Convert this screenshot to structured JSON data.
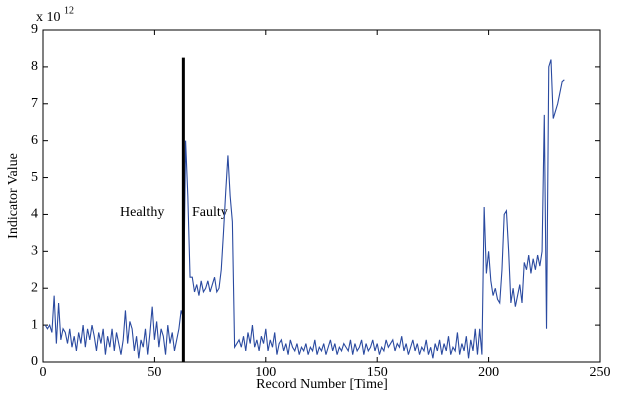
{
  "chart_data": {
    "type": "line",
    "xlabel": "Record Number [Time]",
    "ylabel": "Indicator Value",
    "exponent_base": "x 10",
    "exponent_power": "12",
    "annotations": [
      "Healthy",
      "Faulty"
    ],
    "xlim": [
      0,
      250
    ],
    "xticks": [
      0,
      50,
      100,
      150,
      200,
      250
    ],
    "ylim": [
      0,
      9
    ],
    "yticks": [
      0,
      1,
      2,
      3,
      4,
      5,
      6,
      7,
      8,
      9
    ],
    "divider_x": 63,
    "divider_top": 8.25,
    "divider_color": "#000000",
    "x": [
      1,
      2,
      3,
      4,
      5,
      6,
      7,
      8,
      9,
      10,
      11,
      12,
      13,
      14,
      15,
      16,
      17,
      18,
      19,
      20,
      21,
      22,
      23,
      24,
      25,
      26,
      27,
      28,
      29,
      30,
      31,
      32,
      33,
      34,
      35,
      36,
      37,
      38,
      39,
      40,
      41,
      42,
      43,
      44,
      45,
      46,
      47,
      48,
      49,
      50,
      51,
      52,
      53,
      54,
      55,
      56,
      57,
      58,
      59,
      60,
      61,
      62,
      63,
      64,
      65,
      66,
      67,
      68,
      69,
      70,
      71,
      72,
      73,
      74,
      75,
      76,
      77,
      78,
      79,
      80,
      81,
      82,
      83,
      84,
      85,
      86,
      87,
      88,
      89,
      90,
      91,
      92,
      93,
      94,
      95,
      96,
      97,
      98,
      99,
      100,
      101,
      102,
      103,
      104,
      105,
      106,
      107,
      108,
      109,
      110,
      111,
      112,
      113,
      114,
      115,
      116,
      117,
      118,
      119,
      120,
      121,
      122,
      123,
      124,
      125,
      126,
      127,
      128,
      129,
      130,
      131,
      132,
      133,
      134,
      135,
      136,
      137,
      138,
      139,
      140,
      141,
      142,
      143,
      144,
      145,
      146,
      147,
      148,
      149,
      150,
      151,
      152,
      153,
      154,
      155,
      156,
      157,
      158,
      159,
      160,
      161,
      162,
      163,
      164,
      165,
      166,
      167,
      168,
      169,
      170,
      171,
      172,
      173,
      174,
      175,
      176,
      177,
      178,
      179,
      180,
      181,
      182,
      183,
      184,
      185,
      186,
      187,
      188,
      189,
      190,
      191,
      192,
      193,
      194,
      195,
      196,
      197,
      198,
      199,
      200,
      201,
      202,
      203,
      204,
      205,
      206,
      207,
      208,
      209,
      210,
      211,
      212,
      213,
      214,
      215,
      216,
      217,
      218,
      219,
      220,
      221,
      222,
      223,
      224,
      225,
      226,
      227,
      228,
      229,
      230,
      231,
      232,
      233,
      234
    ],
    "series": [
      {
        "color": "#2a4aa0",
        "values": [
          1.0,
          0.9,
          1.0,
          0.8,
          1.8,
          0.5,
          1.6,
          0.6,
          0.9,
          0.8,
          0.5,
          0.9,
          0.4,
          0.7,
          0.3,
          0.8,
          0.5,
          1.0,
          0.4,
          0.9,
          0.6,
          1.0,
          0.7,
          0.3,
          0.8,
          0.5,
          0.9,
          0.2,
          0.7,
          0.4,
          0.9,
          0.3,
          0.8,
          0.5,
          0.2,
          0.6,
          1.4,
          0.5,
          1.1,
          0.9,
          0.3,
          0.7,
          0.1,
          0.6,
          0.4,
          0.9,
          0.2,
          0.8,
          1.5,
          0.6,
          1.1,
          0.4,
          0.9,
          0.7,
          0.2,
          1.0,
          0.5,
          0.8,
          0.3,
          0.6,
          0.9,
          1.4,
          1.2,
          6.0,
          4.5,
          2.3,
          2.3,
          1.9,
          2.1,
          1.8,
          2.2,
          1.9,
          2.0,
          2.2,
          1.9,
          2.1,
          2.3,
          1.9,
          2.0,
          2.5,
          3.5,
          4.6,
          5.6,
          4.5,
          3.8,
          0.4,
          0.5,
          0.6,
          0.4,
          0.7,
          0.3,
          0.8,
          0.5,
          1.0,
          0.4,
          0.6,
          0.3,
          0.7,
          0.5,
          0.9,
          0.3,
          0.6,
          0.4,
          0.8,
          0.2,
          0.5,
          0.6,
          0.3,
          0.5,
          0.2,
          0.6,
          0.4,
          0.3,
          0.5,
          0.2,
          0.4,
          0.3,
          0.5,
          0.2,
          0.4,
          0.3,
          0.6,
          0.2,
          0.4,
          0.3,
          0.5,
          0.2,
          0.4,
          0.6,
          0.3,
          0.5,
          0.2,
          0.4,
          0.3,
          0.5,
          0.4,
          0.3,
          0.6,
          0.2,
          0.5,
          0.3,
          0.4,
          0.6,
          0.2,
          0.5,
          0.3,
          0.4,
          0.6,
          0.3,
          0.5,
          0.2,
          0.4,
          0.3,
          0.6,
          0.4,
          0.5,
          0.6,
          0.3,
          0.5,
          0.4,
          0.7,
          0.3,
          0.5,
          0.2,
          0.4,
          0.6,
          0.3,
          0.5,
          0.2,
          0.4,
          0.3,
          0.6,
          0.2,
          0.4,
          0.1,
          0.5,
          0.3,
          0.6,
          0.2,
          0.5,
          0.3,
          0.7,
          0.2,
          0.4,
          0.3,
          0.8,
          0.2,
          0.5,
          0.3,
          0.7,
          0.1,
          0.6,
          0.3,
          0.9,
          0.2,
          0.9,
          0.2,
          4.2,
          2.4,
          3.0,
          2.2,
          1.8,
          2.0,
          1.7,
          1.6,
          2.5,
          4.0,
          4.1,
          3.0,
          1.6,
          2.0,
          1.5,
          1.8,
          2.1,
          1.6,
          2.7,
          2.5,
          2.9,
          2.4,
          2.8,
          2.5,
          2.9,
          2.6,
          3.0,
          6.7,
          0.9,
          8.0,
          8.2,
          6.6,
          6.8,
          7.0,
          7.3,
          7.6,
          7.65
        ]
      }
    ]
  }
}
